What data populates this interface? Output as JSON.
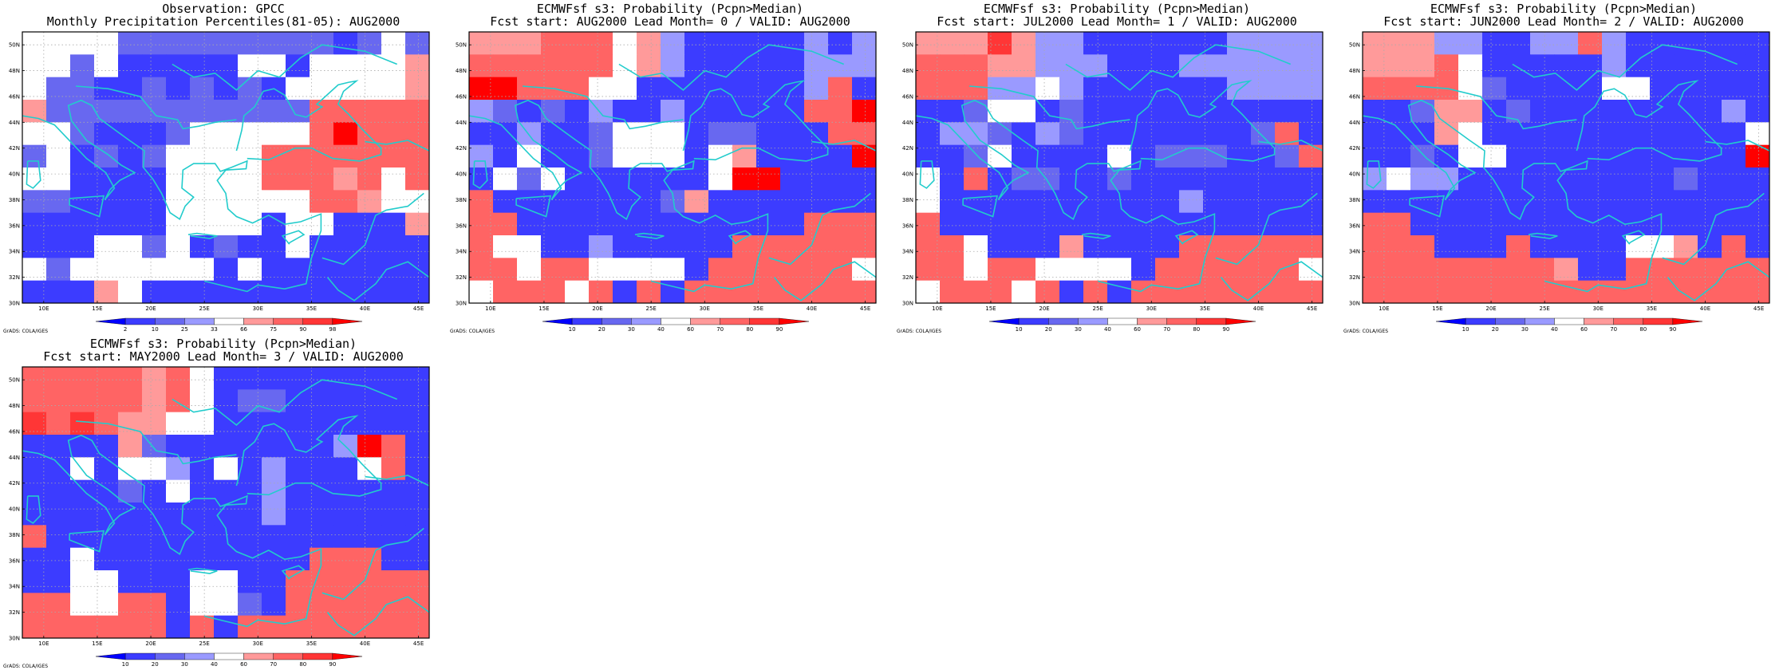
{
  "credit": "GrADS: COLA/IGES",
  "colors": {
    "map_lines": "#22cccc",
    "grid_lines": "#aaaaaa",
    "palette": {
      "db": "#0000ff",
      "b": "#3c3cff",
      "mb": "#6868f0",
      "lb": "#9a9aff",
      "w": "#ffffff",
      "lr": "#ff9a9a",
      "mr": "#ff6464",
      "r": "#ff3636",
      "dr": "#ff0000"
    }
  },
  "chart_data": [
    {
      "type": "heatmap",
      "title": "Observation: GPCC",
      "subtitle": "Monthly Precipitation Percentiles(81-05): AUG2000",
      "x_ticks": [
        "10E",
        "15E",
        "20E",
        "25E",
        "30E",
        "35E",
        "40E",
        "45E"
      ],
      "y_ticks": [
        "50N",
        "48N",
        "46N",
        "44N",
        "42N",
        "40N",
        "38N",
        "36N",
        "34N",
        "32N",
        "30N"
      ],
      "xlim": [
        8,
        46
      ],
      "ylim": [
        30,
        51
      ],
      "grid": true,
      "colorbar_ticks": [
        "2",
        "10",
        "25",
        "33",
        "66",
        "75",
        "90",
        "98"
      ],
      "colorbar_colors": [
        "db",
        "b",
        "mb",
        "lb",
        "w",
        "lr",
        "mr",
        "r",
        "dr"
      ],
      "rows": [
        "w w w w mb mb mb mb mb mb mb mb mb b mb w mb",
        "w w mb w b b b b b w w b w w w w lr",
        "w mb mb b b mb b mb b mb b w w w w w lr",
        "lr mb mb mb mb mb mb mb mb mb mb mb mr mr mr mr mr",
        "w w mb b b b mb w w w w w mr dr mr mr mr",
        "mb w b mb b mb w w w w mr mr mr mr mr mr mr",
        "w w b b b b w w w w mr mr mr lr mr w mr",
        "mb mb b b b b w w w w w w mr mr lr w w",
        "b b b b b b w w w w b w w b b b lr",
        "b b b w w mb w b mb b b w b b b b b",
        "w mb w w w w w w b w b b b b b b b",
        "b b b lr w b b b b b b b b b b b b"
      ]
    },
    {
      "type": "heatmap",
      "title": "ECMWFsf s3: Probability (Pcpn>Median)",
      "subtitle": "Fcst start: AUG2000  Lead Month= 0 / VALID: AUG2000",
      "x_ticks": [
        "10E",
        "15E",
        "20E",
        "25E",
        "30E",
        "35E",
        "40E",
        "45E"
      ],
      "y_ticks": [
        "50N",
        "48N",
        "46N",
        "44N",
        "42N",
        "40N",
        "38N",
        "36N",
        "34N",
        "32N",
        "30N"
      ],
      "xlim": [
        8,
        46
      ],
      "ylim": [
        30,
        51
      ],
      "grid": true,
      "colorbar_ticks": [
        "10",
        "20",
        "30",
        "40",
        "60",
        "70",
        "80",
        "90"
      ],
      "colorbar_colors": [
        "db",
        "b",
        "mb",
        "lb",
        "w",
        "lr",
        "mr",
        "r",
        "dr"
      ],
      "rows": [
        "lr lr lr mr mr mr w lr lb b b b b b lb b lb",
        "mr mr mr mr mr mr w lr lb b b b b b lb lb lb",
        "dr dr mr mr mr w w b b b b b b b lb mr b",
        "lb mb b mb b lb b b lb b b b b b mr mr dr",
        "b b lb b b mb w w w b mb mb b b b mr mr",
        "lb b w b b mb w w w b w lr b b b b dr",
        "b w mb w b b b b b b w dr dr b b b b",
        "mr b b b b b b b mb lr b b b b b b b",
        "mr mr b b b b b b b b b b b b mr mr mr",
        "mr w w b b lb b b b b b mr mr mr mr mr mr",
        "mr mr w mr mr w w w w b mr mr mr mr mr mr w",
        "w mr mr mr w mr b mr b mr mr mr mr mr mr mr mr"
      ]
    },
    {
      "type": "heatmap",
      "title": "ECMWFsf s3: Probability (Pcpn>Median)",
      "subtitle": "Fcst start: JUL2000  Lead Month= 1 / VALID: AUG2000",
      "x_ticks": [
        "10E",
        "15E",
        "20E",
        "25E",
        "30E",
        "35E",
        "40E",
        "45E"
      ],
      "y_ticks": [
        "50N",
        "48N",
        "46N",
        "44N",
        "42N",
        "40N",
        "38N",
        "36N",
        "34N",
        "32N",
        "30N"
      ],
      "xlim": [
        8,
        46
      ],
      "ylim": [
        30,
        51
      ],
      "grid": true,
      "colorbar_ticks": [
        "10",
        "20",
        "30",
        "40",
        "60",
        "70",
        "80",
        "90"
      ],
      "colorbar_colors": [
        "db",
        "b",
        "mb",
        "lb",
        "w",
        "lr",
        "mr",
        "r",
        "dr"
      ],
      "rows": [
        "lr lr lr r lr lb lb b b b b b b lb lb lb lb",
        "mr mr mr lr lr lb lb lb b b b lb lb lb lb lb lb",
        "mr mr mr lb lb w lb b b b b b b lb lb lb lb",
        "b b mb w w b mb b b b b b b b b b b",
        "b lb lb mb b lb mb b b b b b b b mb mr b",
        "b b mb w b b b b w b mb mb mb b b mb mr",
        "w b mr b mb mb b b mb b b b b b b b b",
        "w b b b b b b b b b b lb b b b b b",
        "mr b b b b b b b b b b b b b b b b",
        "mr mr w b b b lr b b b b mr mr mr mr mr mr",
        "mr mr w mr mr w w w w b mr mr mr mr mr mr w",
        "w mr mr mr w mr b mr b mr mr mr mr mr mr mr mr"
      ]
    },
    {
      "type": "heatmap",
      "title": "ECMWFsf s3: Probability (Pcpn>Median)",
      "subtitle": "Fcst start: JUN2000  Lead Month= 2 / VALID: AUG2000",
      "x_ticks": [
        "10E",
        "15E",
        "20E",
        "25E",
        "30E",
        "35E",
        "40E",
        "45E"
      ],
      "y_ticks": [
        "50N",
        "48N",
        "46N",
        "44N",
        "42N",
        "40N",
        "38N",
        "36N",
        "34N",
        "32N",
        "30N"
      ],
      "xlim": [
        8,
        46
      ],
      "ylim": [
        30,
        51
      ],
      "grid": true,
      "colorbar_ticks": [
        "10",
        "20",
        "30",
        "40",
        "60",
        "70",
        "80",
        "90"
      ],
      "colorbar_colors": [
        "db",
        "b",
        "mb",
        "lb",
        "w",
        "lr",
        "mr",
        "r",
        "dr"
      ],
      "rows": [
        "lr lr lr lb lb b b lb lb mr lb b b b b b b",
        "lr lr lr mr w b b b b b lb b b b b b b",
        "mr mr mr mr w mb b b b b w w b b b b b",
        "b b mb lr lr b mb b b b b b b b b lb b",
        "b b b lr w b b b b b b b b b b b w",
        "b b mb b w w b b b b b b b b b b dr",
        "lb w lb lb b b b b b b b b b mb b b b",
        "b b b b b b b b b b b b b b b b b",
        "mr mr b b b b b b b b b b b b b b b",
        "mr mr mr b b b mr b b b b w w lr b mr b",
        "mr mr mr mr mr mr mr mr lr b b mr mr mr mr mr mr",
        "mr mr mr mr mr mr mr mr mr mr mr mr mr mr mr mr mr"
      ]
    },
    {
      "type": "heatmap",
      "title": "ECMWFsf s3: Probability (Pcpn>Median)",
      "subtitle": "Fcst start: MAY2000  Lead Month= 3 / VALID: AUG2000",
      "x_ticks": [
        "10E",
        "15E",
        "20E",
        "25E",
        "30E",
        "35E",
        "40E",
        "45E"
      ],
      "y_ticks": [
        "50N",
        "48N",
        "46N",
        "44N",
        "42N",
        "40N",
        "38N",
        "36N",
        "34N",
        "32N",
        "30N"
      ],
      "xlim": [
        8,
        46
      ],
      "ylim": [
        30,
        51
      ],
      "grid": true,
      "colorbar_ticks": [
        "10",
        "20",
        "30",
        "40",
        "60",
        "70",
        "80",
        "90"
      ],
      "colorbar_colors": [
        "db",
        "b",
        "mb",
        "lb",
        "w",
        "lr",
        "mr",
        "r",
        "dr"
      ],
      "rows": [
        "mr mr mr mr mr lr mr w b b b b b b b b b",
        "mr mr mr mr mr lr mr w b mb mb b b b b b b",
        "r mr r mr lr lr w w b b b b b b b b b",
        "b b b b lr mb b b b b b b b lb dr mr b",
        "b b w b w w lb b w b lb b b b w mr b",
        "b b b b mb b w b b b lb b b b b b b",
        "b b b b b b b b b b lb b b b b b b",
        "mr b b b b b b b b b b b b b b b b",
        "b b w b b b b b b b b b mr mr mr b b",
        "b b w w b b b w w b b mr mr mr mr mr mr",
        "mr mr w w mr mr b w w mb b mr mr mr mr mr mr",
        "mr mr mr mr mr mr b mr b mr mr mr mr mr mr mr mr"
      ]
    }
  ]
}
